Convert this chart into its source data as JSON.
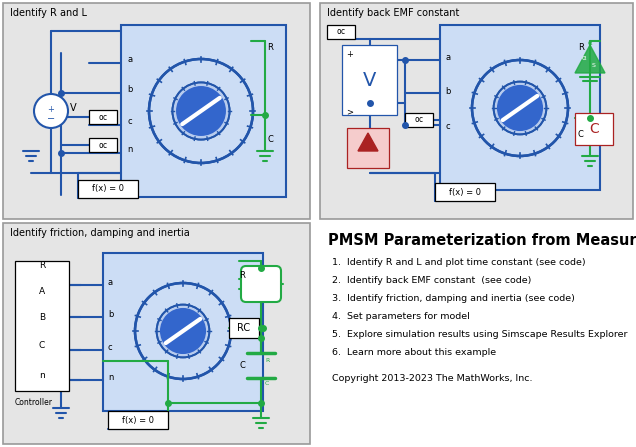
{
  "bg": "#ffffff",
  "panel_bg": "#e5e5e5",
  "panel_border": "#999999",
  "blue": "#2255aa",
  "blue_fill": "#ccddf5",
  "green": "#22aa44",
  "red": "#aa2222",
  "red_fill": "#f5cccc",
  "black": "#000000",
  "title1": "Identify R and L",
  "title2": "Identify back EMF constant",
  "title3": "Identify friction, damping and inertia",
  "main_title": "PMSM Parameterization from Measurements",
  "items": [
    "1.  Identify R and L and plot time constant (see code)",
    "2.  Identify back EMF constant  (see code)",
    "3.  Identify friction, damping and inertia (see code)",
    "4.  Set parameters for model",
    "5.  Explore simulation results using Simscape Results Explorer",
    "6.  Learn more about this example"
  ],
  "copyright": "Copyright 2013-2023 The MathWorks, Inc."
}
